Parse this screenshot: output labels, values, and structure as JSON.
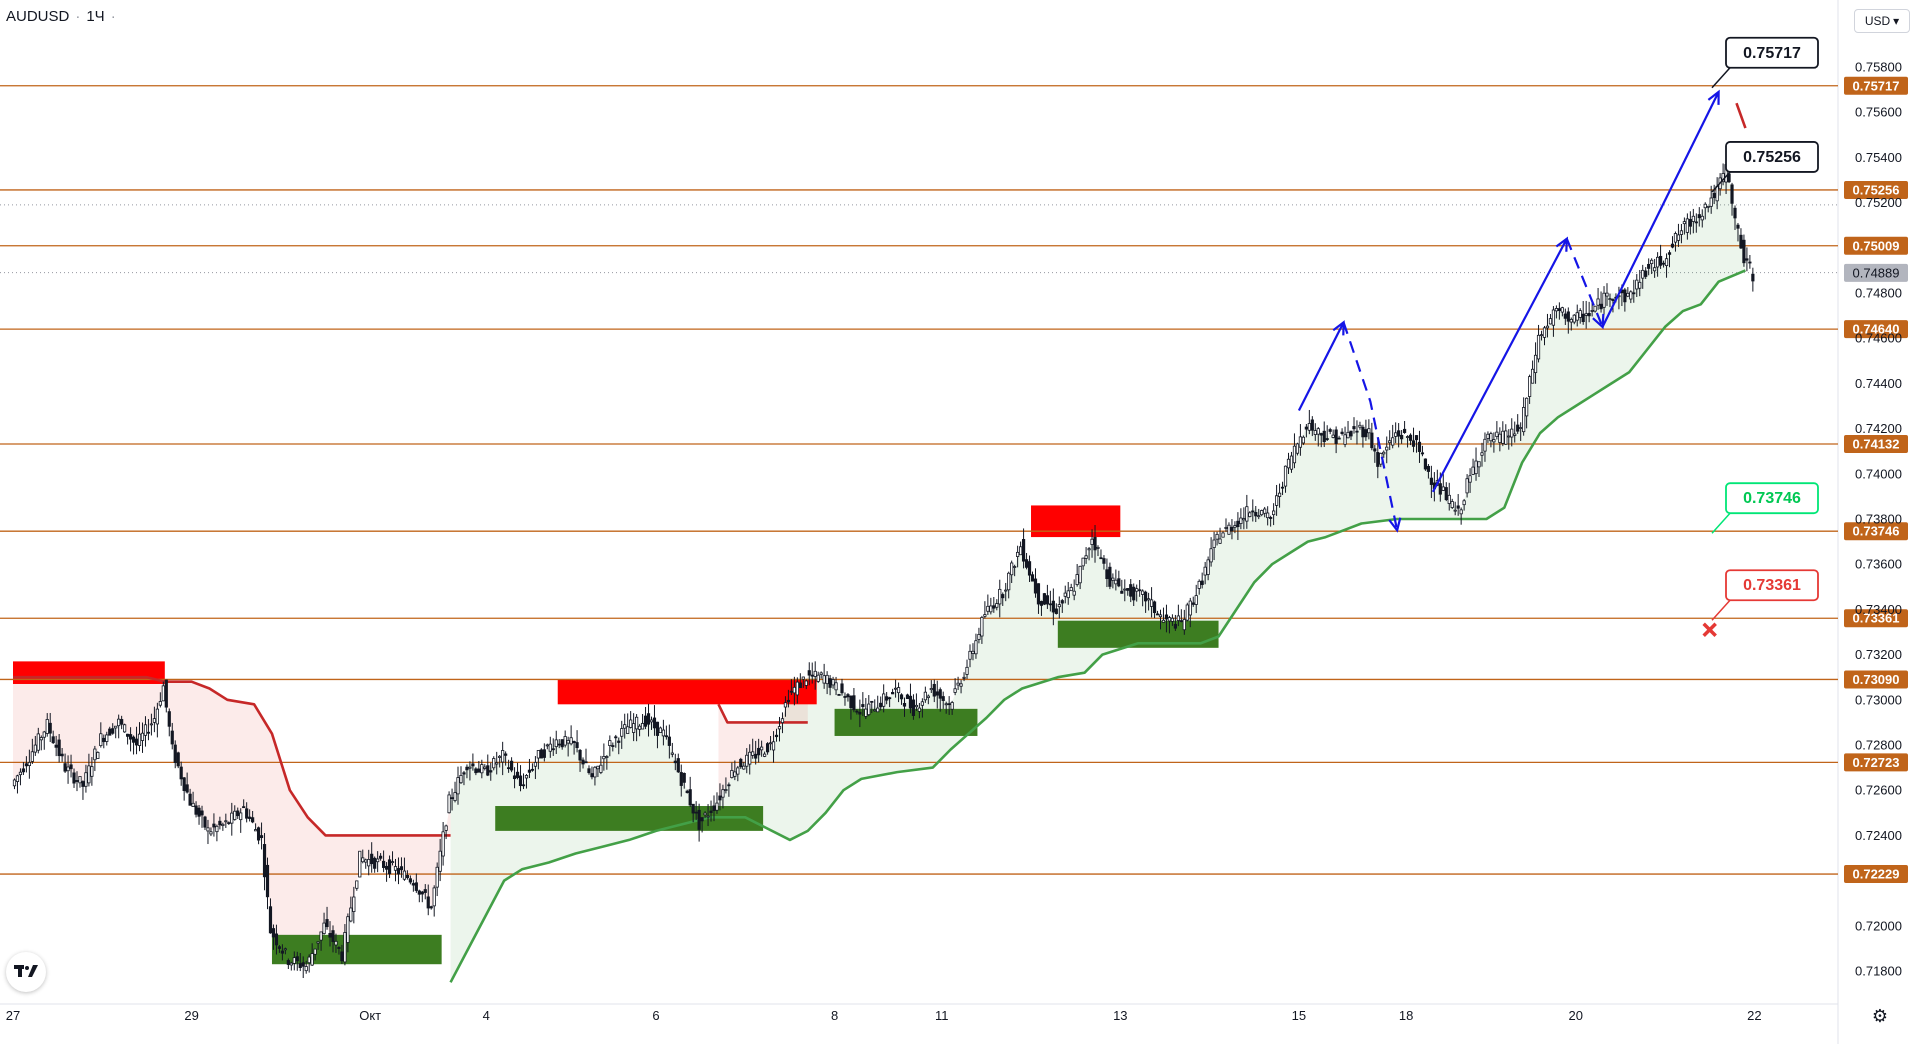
{
  "header": {
    "symbol": "AUDUSD",
    "separator": "·",
    "timeframe": "1Ч",
    "currency": "USD"
  },
  "icons": {
    "logo": "tradingview-logo-icon",
    "settings": "gear-icon",
    "currency_chevron": "chevron-down-icon",
    "cross": "cross-icon"
  },
  "colors": {
    "level_line": "#c0641a",
    "level_label_bg": "#c0641a",
    "bull_candle": "#131722",
    "up_zone": "#3d7d21",
    "down_zone": "#ff0000",
    "support_line": "#43a047",
    "resistance_line": "#c62828",
    "arrow": "#1515e6",
    "current_price_bg": "#b2b5be"
  },
  "chart_data": {
    "type": "candlestick",
    "symbol": "AUDUSD",
    "timeframe": "1Ч",
    "ylim": [
      0.7169,
      0.7597
    ],
    "y_ticks": [
      0.758,
      0.756,
      0.754,
      0.752,
      0.748,
      0.746,
      0.744,
      0.742,
      0.74,
      0.738,
      0.736,
      0.734,
      0.732,
      0.73,
      0.728,
      0.726,
      0.724,
      0.72,
      0.718
    ],
    "y_tick_labels": [
      "0.75800",
      "0.75600",
      "0.75400",
      "0.75200",
      "0.74800",
      "0.74600",
      "0.74400",
      "0.74200",
      "0.74000",
      "0.73800",
      "0.73600",
      "0.73400",
      "0.73200",
      "0.73000",
      "0.72800",
      "0.72600",
      "0.72400",
      "0.72000",
      "0.71800"
    ],
    "x_ticks": [
      "27",
      "29",
      "Окт",
      "4",
      "6",
      "8",
      "11",
      "13",
      "15",
      "18",
      "20",
      "22"
    ],
    "x_tick_bar_index": [
      0,
      20,
      40,
      53,
      72,
      92,
      104,
      124,
      144,
      156,
      175,
      195
    ],
    "levels": [
      {
        "value": 0.75717,
        "label": "0.75717"
      },
      {
        "value": 0.75256,
        "label": "0.75256"
      },
      {
        "value": 0.75009,
        "label": "0.75009"
      },
      {
        "value": 0.7464,
        "label": "0.74640"
      },
      {
        "value": 0.74132,
        "label": "0.74132"
      },
      {
        "value": 0.73746,
        "label": "0.73746"
      },
      {
        "value": 0.73361,
        "label": "0.73361"
      },
      {
        "value": 0.7309,
        "label": "0.73090"
      },
      {
        "value": 0.72723,
        "label": "0.72723"
      },
      {
        "value": 0.72229,
        "label": "0.72229"
      }
    ],
    "current_price": {
      "value": 0.74889,
      "label": "0.74889"
    },
    "callouts": [
      {
        "label": "0.75717",
        "value": 0.75717,
        "style": "black"
      },
      {
        "label": "0.75256",
        "value": 0.75256,
        "style": "black"
      },
      {
        "label": "0.73746",
        "value": 0.73746,
        "style": "green"
      },
      {
        "label": "0.73361",
        "value": 0.73361,
        "style": "red"
      }
    ],
    "price_path": [
      [
        0,
        0.7262
      ],
      [
        2,
        0.7275
      ],
      [
        4,
        0.7289
      ],
      [
        6,
        0.727
      ],
      [
        8,
        0.7262
      ],
      [
        10,
        0.7283
      ],
      [
        12,
        0.729
      ],
      [
        14,
        0.728
      ],
      [
        16,
        0.7292
      ],
      [
        17,
        0.7306
      ],
      [
        18,
        0.7278
      ],
      [
        20,
        0.7255
      ],
      [
        22,
        0.7242
      ],
      [
        24,
        0.7245
      ],
      [
        26,
        0.7252
      ],
      [
        28,
        0.7238
      ],
      [
        29,
        0.7198
      ],
      [
        31,
        0.7185
      ],
      [
        33,
        0.7182
      ],
      [
        35,
        0.72
      ],
      [
        37,
        0.7187
      ],
      [
        39,
        0.723
      ],
      [
        41,
        0.7228
      ],
      [
        43,
        0.7225
      ],
      [
        45,
        0.722
      ],
      [
        47,
        0.7208
      ],
      [
        49,
        0.7255
      ],
      [
        51,
        0.7272
      ],
      [
        53,
        0.7268
      ],
      [
        55,
        0.7275
      ],
      [
        57,
        0.7262
      ],
      [
        59,
        0.7275
      ],
      [
        61,
        0.7282
      ],
      [
        63,
        0.728
      ],
      [
        65,
        0.7265
      ],
      [
        67,
        0.728
      ],
      [
        69,
        0.7288
      ],
      [
        71,
        0.7291
      ],
      [
        73,
        0.7285
      ],
      [
        75,
        0.7265
      ],
      [
        77,
        0.7245
      ],
      [
        79,
        0.7255
      ],
      [
        81,
        0.727
      ],
      [
        83,
        0.7275
      ],
      [
        85,
        0.728
      ],
      [
        86,
        0.729
      ],
      [
        87,
        0.7302
      ],
      [
        89,
        0.731
      ],
      [
        91,
        0.731
      ],
      [
        93,
        0.7303
      ],
      [
        95,
        0.7295
      ],
      [
        97,
        0.7298
      ],
      [
        99,
        0.7304
      ],
      [
        101,
        0.7296
      ],
      [
        103,
        0.7305
      ],
      [
        105,
        0.7298
      ],
      [
        107,
        0.7315
      ],
      [
        109,
        0.7338
      ],
      [
        111,
        0.7348
      ],
      [
        113,
        0.7368
      ],
      [
        115,
        0.7345
      ],
      [
        117,
        0.734
      ],
      [
        119,
        0.735
      ],
      [
        121,
        0.7372
      ],
      [
        123,
        0.7353
      ],
      [
        125,
        0.7348
      ],
      [
        127,
        0.7345
      ],
      [
        129,
        0.7335
      ],
      [
        131,
        0.7334
      ],
      [
        133,
        0.735
      ],
      [
        135,
        0.7372
      ],
      [
        137,
        0.7378
      ],
      [
        139,
        0.7385
      ],
      [
        141,
        0.738
      ],
      [
        143,
        0.7405
      ],
      [
        145,
        0.7422
      ],
      [
        147,
        0.7417
      ],
      [
        149,
        0.7416
      ],
      [
        151,
        0.742
      ],
      [
        152,
        0.7418
      ],
      [
        153,
        0.7405
      ],
      [
        155,
        0.7418
      ],
      [
        157,
        0.7415
      ],
      [
        159,
        0.7398
      ],
      [
        161,
        0.7388
      ],
      [
        162,
        0.7382
      ],
      [
        163,
        0.7395
      ],
      [
        165,
        0.7415
      ],
      [
        167,
        0.7416
      ],
      [
        169,
        0.742
      ],
      [
        171,
        0.746
      ],
      [
        173,
        0.7472
      ],
      [
        175,
        0.7468
      ],
      [
        177,
        0.7472
      ],
      [
        179,
        0.748
      ],
      [
        181,
        0.7478
      ],
      [
        183,
        0.749
      ],
      [
        185,
        0.7495
      ],
      [
        187,
        0.7508
      ],
      [
        189,
        0.7515
      ],
      [
        191,
        0.7525
      ],
      [
        192,
        0.7535
      ],
      [
        193,
        0.7512
      ],
      [
        194,
        0.7495
      ],
      [
        195,
        0.7488
      ]
    ],
    "support_trail": [
      [
        49,
        0.7175
      ],
      [
        51,
        0.719
      ],
      [
        53,
        0.7205
      ],
      [
        55,
        0.722
      ],
      [
        57,
        0.7225
      ],
      [
        60,
        0.7228
      ],
      [
        63,
        0.7232
      ],
      [
        66,
        0.7235
      ],
      [
        69,
        0.7238
      ],
      [
        72,
        0.7242
      ],
      [
        75,
        0.7245
      ],
      [
        78,
        0.7248
      ],
      [
        82,
        0.7248
      ],
      [
        87,
        0.7238
      ],
      [
        89,
        0.7242
      ],
      [
        91,
        0.725
      ],
      [
        93,
        0.726
      ],
      [
        95,
        0.7265
      ],
      [
        99,
        0.7268
      ],
      [
        103,
        0.727
      ],
      [
        105,
        0.7278
      ],
      [
        107,
        0.7285
      ],
      [
        109,
        0.7292
      ],
      [
        111,
        0.73
      ],
      [
        113,
        0.7305
      ],
      [
        117,
        0.731
      ],
      [
        120,
        0.7312
      ],
      [
        122,
        0.732
      ],
      [
        126,
        0.7325
      ],
      [
        129,
        0.7325
      ],
      [
        131,
        0.7325
      ],
      [
        133,
        0.7325
      ],
      [
        135,
        0.7328
      ],
      [
        137,
        0.734
      ],
      [
        139,
        0.7352
      ],
      [
        141,
        0.736
      ],
      [
        143,
        0.7365
      ],
      [
        145,
        0.737
      ],
      [
        147,
        0.7372
      ],
      [
        149,
        0.7375
      ],
      [
        151,
        0.7378
      ],
      [
        155,
        0.738
      ],
      [
        160,
        0.738
      ],
      [
        165,
        0.738
      ],
      [
        167,
        0.7385
      ],
      [
        169,
        0.7405
      ],
      [
        171,
        0.7418
      ],
      [
        173,
        0.7425
      ],
      [
        175,
        0.743
      ],
      [
        177,
        0.7435
      ],
      [
        179,
        0.744
      ],
      [
        181,
        0.7445
      ],
      [
        183,
        0.7455
      ],
      [
        185,
        0.7465
      ],
      [
        187,
        0.7472
      ],
      [
        189,
        0.7475
      ],
      [
        191,
        0.7485
      ],
      [
        194,
        0.749
      ]
    ],
    "resistance_trail": [
      [
        0,
        0.731
      ],
      [
        10,
        0.731
      ],
      [
        15,
        0.731
      ],
      [
        17,
        0.7308
      ],
      [
        20,
        0.7308
      ],
      [
        22,
        0.7305
      ],
      [
        24,
        0.73
      ],
      [
        27,
        0.7298
      ],
      [
        29,
        0.7285
      ],
      [
        31,
        0.726
      ],
      [
        33,
        0.7248
      ],
      [
        35,
        0.724
      ],
      [
        37,
        0.724
      ],
      [
        40,
        0.724
      ],
      [
        45,
        0.724
      ],
      [
        49,
        0.724
      ]
    ],
    "resistance_trail_2": [
      [
        79,
        0.7298
      ],
      [
        80,
        0.729
      ],
      [
        84,
        0.729
      ],
      [
        89,
        0.729
      ]
    ],
    "resistance_trail_3": [
      [
        193,
        0.7564
      ],
      [
        194,
        0.7553
      ]
    ],
    "demand_zones": [
      {
        "from": 29,
        "to": 48,
        "low": 0.7183,
        "high": 0.7196
      },
      {
        "from": 54,
        "to": 84,
        "low": 0.7242,
        "high": 0.7253
      },
      {
        "from": 92,
        "to": 108,
        "low": 0.7284,
        "high": 0.7296
      },
      {
        "from": 117,
        "to": 135,
        "low": 0.7323,
        "high": 0.7335
      }
    ],
    "supply_zones": [
      {
        "from": 0,
        "to": 17,
        "low": 0.7307,
        "high": 0.7317
      },
      {
        "from": 61,
        "to": 90,
        "low": 0.7298,
        "high": 0.7309
      },
      {
        "from": 114,
        "to": 124,
        "low": 0.7372,
        "high": 0.7386
      }
    ],
    "arrows": [
      {
        "points": [
          [
            144,
            0.7428
          ],
          [
            149,
            0.7467
          ]
        ],
        "dashed": false
      },
      {
        "points": [
          [
            149,
            0.7467
          ],
          [
            152,
            0.7432
          ],
          [
            155,
            0.7375
          ]
        ],
        "dashed": true
      },
      {
        "points": [
          [
            159,
            0.7392
          ],
          [
            174,
            0.7504
          ]
        ],
        "dashed": false
      },
      {
        "points": [
          [
            174,
            0.7504
          ],
          [
            178,
            0.7465
          ]
        ],
        "dashed": true
      },
      {
        "points": [
          [
            178,
            0.7465
          ],
          [
            191,
            0.7569
          ]
        ],
        "dashed": false
      }
    ],
    "cross_marker": {
      "bar": 190,
      "value": 0.7331
    },
    "dotted_lines": [
      0.7519,
      0.7489
    ]
  }
}
